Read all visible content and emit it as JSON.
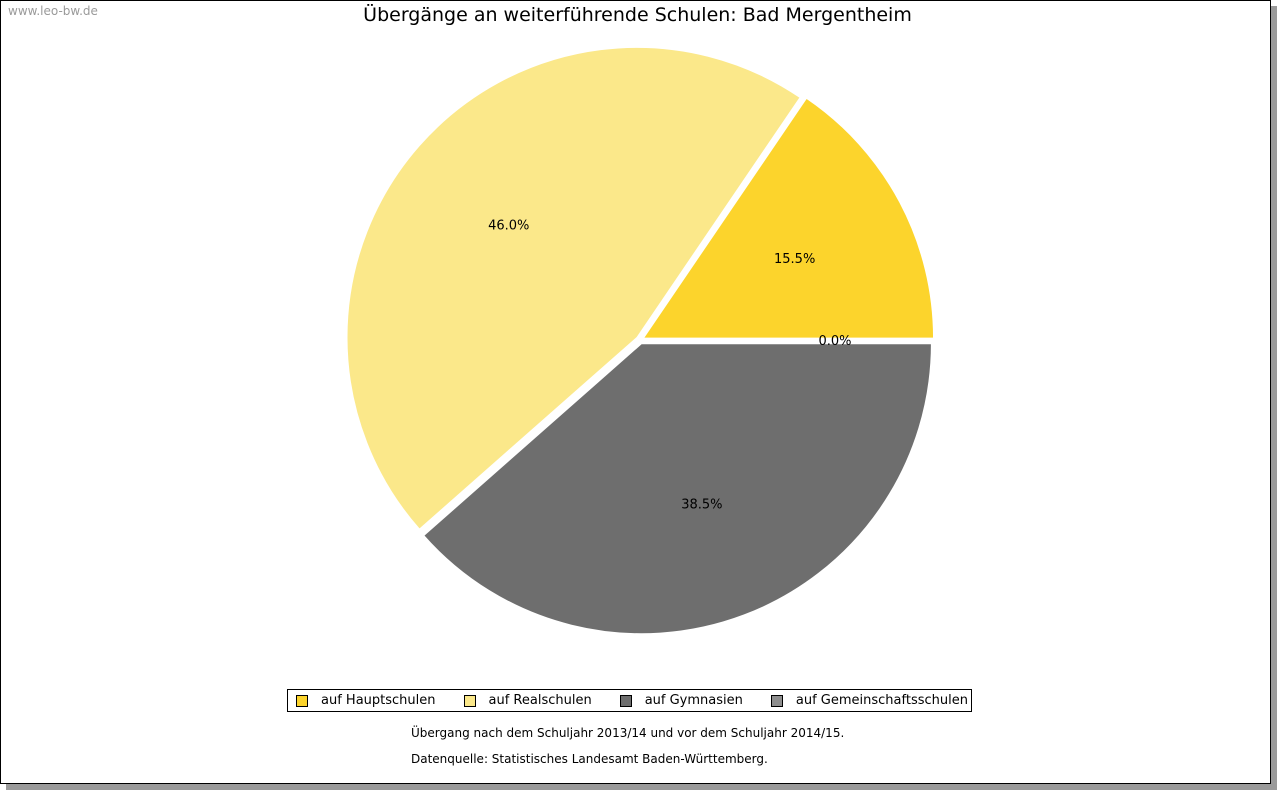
{
  "watermark": "www.leo-bw.de",
  "chart_data": {
    "type": "pie",
    "title": "Übergänge an weiterführende Schulen: Bad Mergentheim",
    "slices": [
      {
        "name": "auf Hauptschulen",
        "value": 15.5,
        "label": "15.5%",
        "color": "#fcd42c"
      },
      {
        "name": "auf Realschulen",
        "value": 46.0,
        "label": "46.0%",
        "color": "#fbe88a"
      },
      {
        "name": "auf Gymnasien",
        "value": 38.5,
        "label": "38.5%",
        "color": "#6e6e6e"
      },
      {
        "name": "auf Gemeinschaftsschulen",
        "value": 0.0,
        "label": "0.0%",
        "color": "#8e8e8e"
      }
    ],
    "legend_position": "bottom"
  },
  "notes": {
    "line1": "Übergang nach dem Schuljahr 2013/14 und vor dem Schuljahr 2014/15.",
    "line2": "Datenquelle: Statistisches Landesamt Baden-Württemberg."
  }
}
